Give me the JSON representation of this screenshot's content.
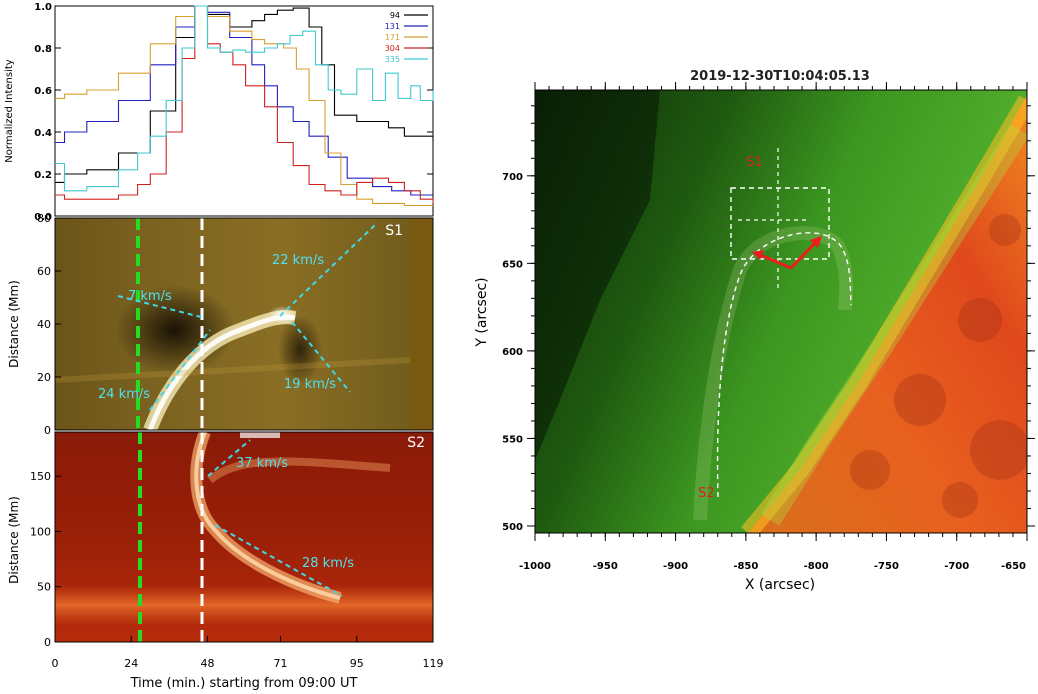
{
  "figure": {
    "lightcurve": {
      "type": "line",
      "ylabel": "Normalized Intensity",
      "yticks": [
        "0.0",
        "0.2",
        "0.4",
        "0.6",
        "0.8",
        "1.0"
      ],
      "ylim": [
        0,
        1
      ],
      "xlim": [
        0,
        119
      ],
      "legend_placement": "top-right",
      "series": [
        {
          "name": "94",
          "color": "#000000",
          "x": [
            0,
            3,
            10,
            20,
            30,
            38,
            44,
            48,
            55,
            62,
            66,
            70,
            75,
            80,
            84,
            88,
            95,
            100,
            105,
            110,
            115,
            119
          ],
          "y": [
            0.16,
            0.2,
            0.22,
            0.3,
            0.5,
            0.85,
            1.0,
            0.96,
            0.9,
            0.93,
            0.96,
            0.98,
            0.99,
            0.9,
            0.72,
            0.48,
            0.45,
            0.45,
            0.42,
            0.38,
            0.38,
            0.36
          ]
        },
        {
          "name": "131",
          "color": "#2020c0",
          "x": [
            0,
            3,
            10,
            20,
            30,
            38,
            44,
            48,
            55,
            62,
            66,
            70,
            75,
            80,
            86,
            92,
            100,
            106,
            112,
            119
          ],
          "y": [
            0.35,
            0.4,
            0.45,
            0.55,
            0.72,
            0.9,
            1.0,
            0.97,
            0.85,
            0.72,
            0.62,
            0.52,
            0.45,
            0.38,
            0.28,
            0.18,
            0.14,
            0.12,
            0.1,
            0.1
          ]
        },
        {
          "name": "171",
          "color": "#d8a030",
          "x": [
            0,
            3,
            10,
            20,
            30,
            38,
            44,
            48,
            55,
            62,
            66,
            72,
            76,
            80,
            85,
            90,
            95,
            100,
            110,
            119
          ],
          "y": [
            0.56,
            0.58,
            0.6,
            0.68,
            0.82,
            0.95,
            1.0,
            0.95,
            0.88,
            0.84,
            0.82,
            0.8,
            0.7,
            0.55,
            0.3,
            0.15,
            0.08,
            0.06,
            0.05,
            0.05
          ]
        },
        {
          "name": "304",
          "color": "#d02020",
          "x": [
            0,
            3,
            10,
            20,
            26,
            30,
            35,
            40,
            44,
            48,
            52,
            56,
            60,
            66,
            70,
            75,
            80,
            85,
            90,
            95,
            100,
            105,
            110,
            115,
            119
          ],
          "y": [
            0.1,
            0.08,
            0.08,
            0.1,
            0.15,
            0.2,
            0.4,
            0.75,
            1.0,
            0.82,
            0.78,
            0.72,
            0.62,
            0.52,
            0.35,
            0.24,
            0.15,
            0.12,
            0.1,
            0.16,
            0.18,
            0.16,
            0.12,
            0.08,
            0.06
          ]
        },
        {
          "name": "335",
          "color": "#40c8d0",
          "x": [
            0,
            3,
            10,
            20,
            26,
            30,
            35,
            40,
            44,
            48,
            52,
            56,
            60,
            66,
            70,
            74,
            78,
            82,
            86,
            90,
            95,
            100,
            104,
            108,
            112,
            115,
            119
          ],
          "y": [
            0.25,
            0.12,
            0.14,
            0.22,
            0.3,
            0.38,
            0.55,
            0.8,
            1.0,
            0.8,
            0.78,
            0.79,
            0.78,
            0.8,
            0.82,
            0.86,
            0.88,
            0.72,
            0.6,
            0.58,
            0.7,
            0.55,
            0.68,
            0.56,
            0.62,
            0.55,
            0.6
          ]
        }
      ]
    },
    "s1_panel": {
      "label": "S1",
      "ylabel": "Distance (Mm)",
      "yticks": [
        "0",
        "20",
        "40",
        "60",
        "80"
      ],
      "ylim": [
        0,
        80
      ],
      "speeds": [
        "22 km/s",
        "7 km/s",
        "19 km/s",
        "24 km/s"
      ]
    },
    "s2_panel": {
      "label": "S2",
      "ylabel": "Distance (Mm)",
      "yticks": [
        "0",
        "50",
        "100",
        "150"
      ],
      "ylim": [
        0,
        190
      ],
      "speeds": [
        "37 km/s",
        "28 km/s"
      ]
    },
    "time_axis": {
      "xlabel": "Time (min.) starting from 09:00 UT",
      "xticks": [
        "0",
        "24",
        "48",
        "71",
        "95",
        "119"
      ],
      "xlim": [
        0,
        119
      ],
      "markers": [
        {
          "time": 27,
          "color": "#22dd22"
        },
        {
          "time": 46,
          "color": "#ffffff"
        }
      ]
    },
    "image_panel": {
      "title": "2019-12-30T10:04:05.13",
      "xlabel": "X (arcsec)",
      "ylabel": "Y (arcsec)",
      "xticks": [
        "-1000",
        "-950",
        "-900",
        "-850",
        "-800",
        "-750",
        "-700",
        "-650"
      ],
      "yticks": [
        "500",
        "550",
        "600",
        "650",
        "700"
      ],
      "xlim": [
        -1000,
        -650
      ],
      "ylim": [
        496,
        749
      ],
      "slit_labels": [
        "S1",
        "S2"
      ]
    }
  }
}
